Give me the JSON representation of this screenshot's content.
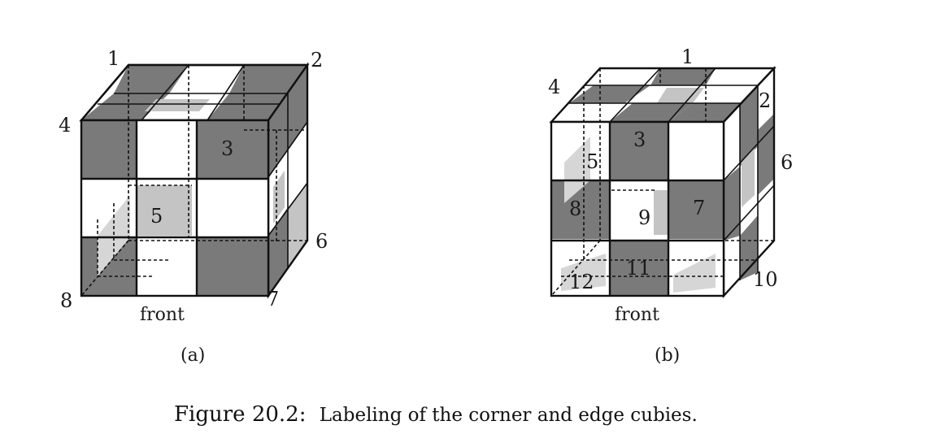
{
  "panel_a": {
    "corner_labels": [
      "1",
      "2",
      "3",
      "4",
      "5",
      "6",
      "7",
      "8"
    ],
    "front_label": "front",
    "sublabel": "(a)"
  },
  "panel_b": {
    "edge_labels": [
      "1",
      "2",
      "3",
      "4",
      "5",
      "6",
      "7",
      "8",
      "9",
      "10",
      "11",
      "12"
    ],
    "front_label": "front",
    "sublabel": "(b)"
  },
  "caption": {
    "prefix": "Figure 20.2:",
    "text": "Labeling of the corner and edge cubies."
  },
  "colors": {
    "dark": "#7a7a7a",
    "light": "#c4c4c4",
    "white": "#ffffff",
    "line": "#111111"
  }
}
